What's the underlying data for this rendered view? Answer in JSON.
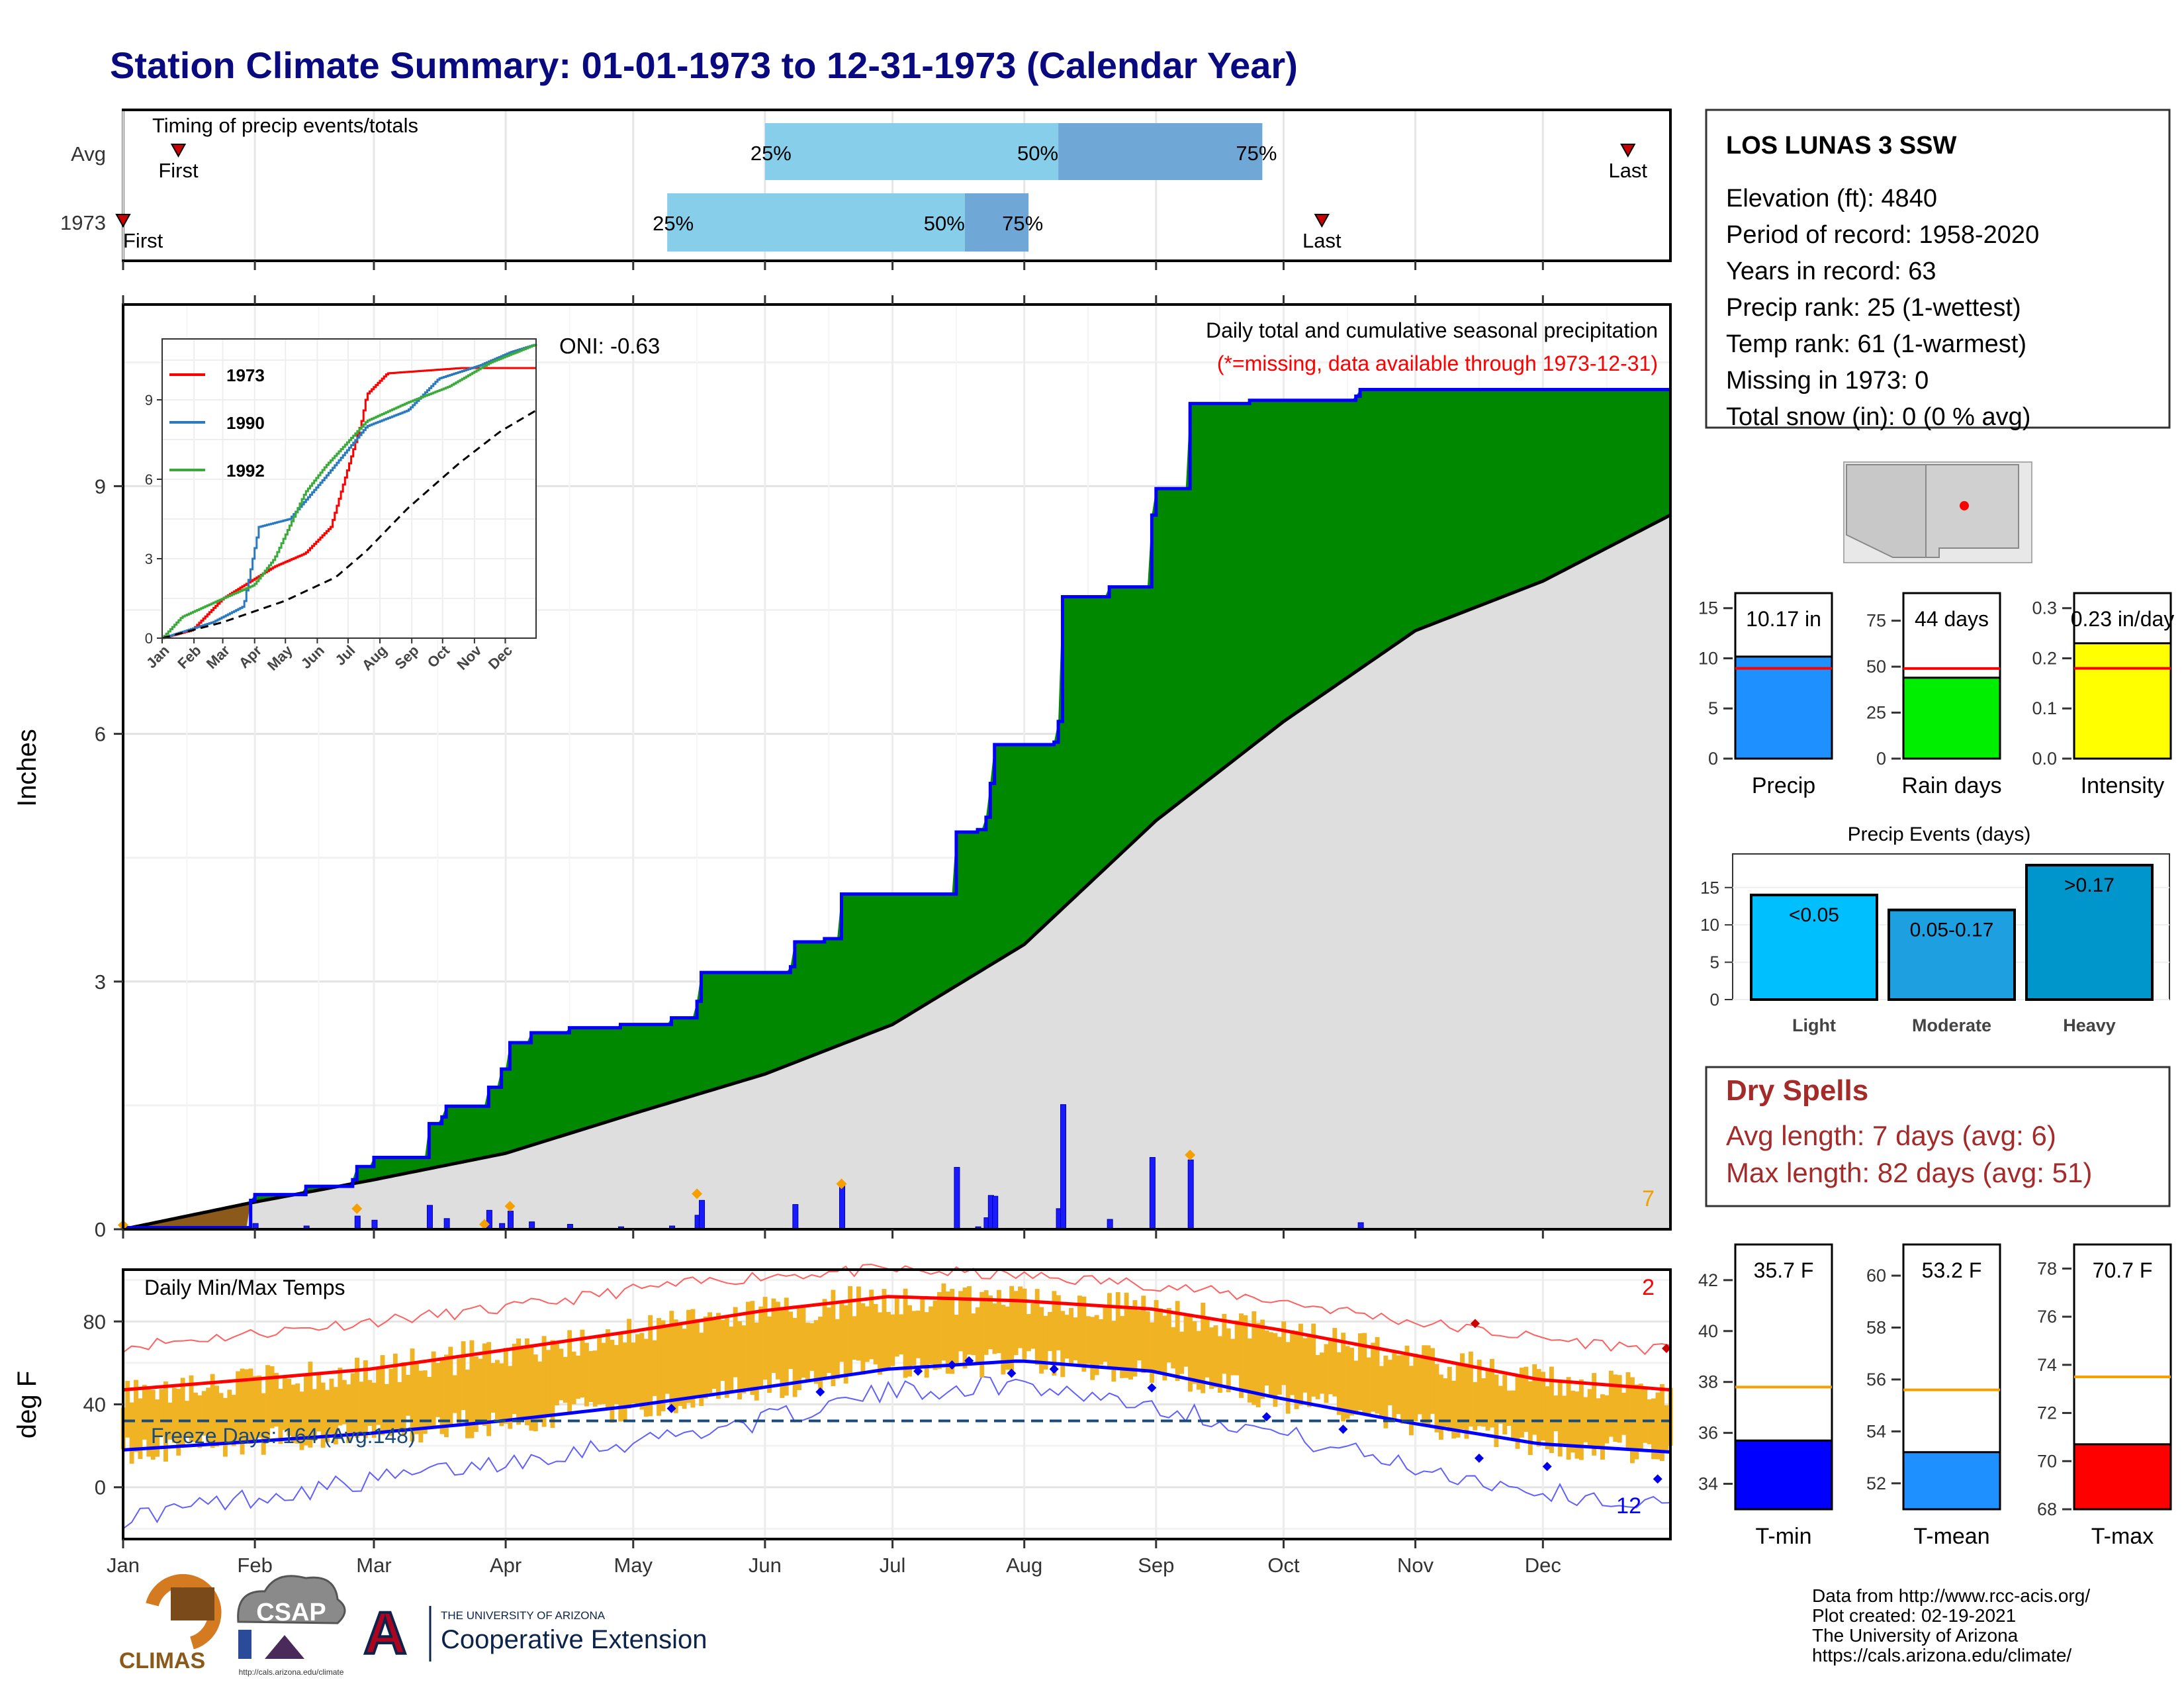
{
  "title": "Station Climate Summary: 01-01-1973 to 12-31-1973 (Calendar Year)",
  "timing": {
    "label": "Timing of precip events/totals",
    "rows": [
      "Avg",
      "1973"
    ],
    "avg": {
      "first": "01-14",
      "p25": "06-01",
      "p50": "08-09",
      "p75": "09-26",
      "last": "12-21",
      "first_label": "First",
      "last_label": "Last"
    },
    "year": {
      "first": "01-01",
      "p25": "05-09",
      "p50": "07-18",
      "p75": "08-02",
      "last": "10-10",
      "first_label": "First",
      "last_label": "Last"
    },
    "pct_labels": [
      "25%",
      "50%",
      "75%"
    ]
  },
  "precip_panel": {
    "ylabel": "Inches",
    "oni": "ONI: -0.63",
    "header": "Daily total and cumulative seasonal precipitation",
    "missing_note": "(*=missing, data available through 1973-12-31)",
    "corner_count": "7",
    "yticks": [
      "0",
      "3",
      "6",
      "9"
    ]
  },
  "inset": {
    "legend": [
      "1973",
      "1990",
      "1992"
    ],
    "yticks": [
      "0",
      "3",
      "6",
      "9"
    ],
    "months": [
      "Jan",
      "Feb",
      "Mar",
      "Apr",
      "May",
      "Jun",
      "Jul",
      "Aug",
      "Sep",
      "Oct",
      "Nov",
      "Dec"
    ]
  },
  "temp_panel": {
    "ylabel": "deg F",
    "title": "Daily Min/Max Temps",
    "freeze": "Freeze Days: 164 (Avg:148)",
    "count_red": "2",
    "count_blue": "12",
    "yticks": [
      "0",
      "40",
      "80"
    ]
  },
  "months": [
    "Jan",
    "Feb",
    "Mar",
    "Apr",
    "May",
    "Jun",
    "Jul",
    "Aug",
    "Sep",
    "Oct",
    "Nov",
    "Dec"
  ],
  "station": {
    "name": "LOS LUNAS 3 SSW",
    "lines": [
      "Elevation (ft): 4840",
      "Period of record: 1958-2020",
      "Years in record: 63",
      "Precip rank: 25 (1-wettest)",
      "Temp rank: 61 (1-warmest)",
      "Missing in 1973: 0",
      "Total snow (in): 0 (0 % avg)"
    ]
  },
  "summary_bars": [
    {
      "label": "Precip",
      "value_text": "10.17 in",
      "yticks": [
        "0",
        "5",
        "10",
        "15"
      ]
    },
    {
      "label": "Rain days",
      "value_text": "44 days",
      "yticks": [
        "0",
        "25",
        "50",
        "75"
      ]
    },
    {
      "label": "Intensity",
      "value_text": "0.23 in/day",
      "yticks": [
        "0.0",
        "0.1",
        "0.2",
        "0.3"
      ]
    }
  ],
  "events": {
    "title": "Precip Events (days)",
    "yticks": [
      "0",
      "5",
      "10",
      "15"
    ],
    "bars": [
      {
        "label": "Light",
        "text": "<0.05"
      },
      {
        "label": "Moderate",
        "text": "0.05-0.17"
      },
      {
        "label": "Heavy",
        "text": ">0.17"
      }
    ]
  },
  "dry_spells": {
    "title": "Dry Spells",
    "avg": "Avg length: 7 days (avg: 6)",
    "max": "Max length: 82 days (avg: 51)"
  },
  "temp_bars": [
    {
      "label": "T-min",
      "value_text": "35.7 F",
      "yticks": [
        "34",
        "36",
        "38",
        "40",
        "42"
      ]
    },
    {
      "label": "T-mean",
      "value_text": "53.2 F",
      "yticks": [
        "52",
        "54",
        "56",
        "58",
        "60"
      ]
    },
    {
      "label": "T-max",
      "value_text": "70.7 F",
      "yticks": [
        "68",
        "70",
        "72",
        "74",
        "76",
        "78"
      ]
    }
  ],
  "credits": [
    "Data from http://www.rcc-acis.org/",
    "Plot created: 02-19-2021",
    "The University of Arizona",
    "https://cals.arizona.edu/climate/"
  ],
  "logos": {
    "climas": "CLIMAS",
    "csap": "CSAP",
    "csap_url": "http://cals.arizona.edu/climate",
    "ua_line1": "THE UNIVERSITY OF ARIZONA",
    "ua_line2": "Cooperative Extension"
  },
  "colors": {
    "title": "#0a0a80",
    "green": "#008800",
    "brown": "#8b5a1a",
    "blue": "#0000ff",
    "gold": "#f0b323",
    "red": "#ff0000",
    "light_blue": "#87ceeb",
    "steel": "#6fa8d6",
    "gray": "#dedede",
    "dry_red": "#a52a2a"
  },
  "chart_data": [
    {
      "type": "line",
      "name": "cumulative precipitation",
      "x_unit": "day of year",
      "y_unit": "inches",
      "ylim": [
        0,
        11.2
      ],
      "cum_1973": [
        [
          1,
          0.02
        ],
        [
          31,
          0.35
        ],
        [
          32,
          0.42
        ],
        [
          44,
          0.52
        ],
        [
          55,
          0.6
        ],
        [
          56,
          0.76
        ],
        [
          59,
          0.76
        ],
        [
          60,
          0.87
        ],
        [
          72,
          0.87
        ],
        [
          73,
          1.28
        ],
        [
          76,
          1.36
        ],
        [
          77,
          1.49
        ],
        [
          86,
          1.49
        ],
        [
          87,
          1.72
        ],
        [
          90,
          1.94
        ],
        [
          92,
          2.26
        ],
        [
          97,
          2.38
        ],
        [
          105,
          2.38
        ],
        [
          106,
          2.44
        ],
        [
          112,
          2.44
        ],
        [
          118,
          2.48
        ],
        [
          130,
          2.56
        ],
        [
          136,
          2.76
        ],
        [
          137,
          3.11
        ],
        [
          150,
          3.11
        ],
        [
          158,
          3.18
        ],
        [
          159,
          3.48
        ],
        [
          166,
          3.52
        ],
        [
          170,
          4.06
        ],
        [
          196,
          4.06
        ],
        [
          197,
          4.81
        ],
        [
          202,
          4.84
        ],
        [
          204,
          4.99
        ],
        [
          205,
          5.4
        ],
        [
          206,
          5.87
        ],
        [
          220,
          5.9
        ],
        [
          221,
          6.15
        ],
        [
          222,
          7.66
        ],
        [
          232,
          7.66
        ],
        [
          233,
          7.78
        ],
        [
          242,
          7.78
        ],
        [
          243,
          8.65
        ],
        [
          244,
          8.97
        ],
        [
          251,
          8.97
        ],
        [
          252,
          10.0
        ],
        [
          266,
          10.04
        ],
        [
          291,
          10.09
        ],
        [
          292,
          10.17
        ],
        [
          365,
          10.17
        ]
      ],
      "avg_cum": [
        [
          1,
          0
        ],
        [
          31,
          0.32
        ],
        [
          60,
          0.6
        ],
        [
          91,
          0.92
        ],
        [
          121,
          1.4
        ],
        [
          152,
          1.88
        ],
        [
          182,
          2.48
        ],
        [
          213,
          3.45
        ],
        [
          244,
          4.95
        ],
        [
          274,
          6.15
        ],
        [
          305,
          7.25
        ],
        [
          335,
          7.85
        ],
        [
          365,
          8.65
        ]
      ],
      "daily": [
        [
          1,
          0.02
        ],
        [
          32,
          0.07
        ],
        [
          44,
          0.04
        ],
        [
          56,
          0.16
        ],
        [
          60,
          0.11
        ],
        [
          73,
          0.29
        ],
        [
          77,
          0.13
        ],
        [
          87,
          0.23
        ],
        [
          90,
          0.07
        ],
        [
          92,
          0.22
        ],
        [
          97,
          0.09
        ],
        [
          106,
          0.06
        ],
        [
          118,
          0.03
        ],
        [
          130,
          0.04
        ],
        [
          136,
          0.17
        ],
        [
          137,
          0.35
        ],
        [
          159,
          0.3
        ],
        [
          170,
          0.54
        ],
        [
          197,
          0.75
        ],
        [
          202,
          0.03
        ],
        [
          204,
          0.14
        ],
        [
          205,
          0.41
        ],
        [
          206,
          0.4
        ],
        [
          221,
          0.25
        ],
        [
          222,
          1.51
        ],
        [
          233,
          0.12
        ],
        [
          243,
          0.87
        ],
        [
          252,
          0.84
        ],
        [
          292,
          0.08
        ]
      ],
      "missing_markers": [
        [
          1,
          0.05
        ],
        [
          56,
          0.25
        ],
        [
          86,
          0.06
        ],
        [
          92,
          0.28
        ],
        [
          136,
          0.43
        ],
        [
          170,
          0.55
        ],
        [
          252,
          0.9
        ]
      ]
    },
    {
      "type": "line",
      "name": "inset cumulative",
      "series": [
        {
          "name": "1973",
          "points": [
            [
              1,
              0
            ],
            [
              30,
              0.3
            ],
            [
              60,
              1.5
            ],
            [
              85,
              2.1
            ],
            [
              110,
              2.7
            ],
            [
              140,
              3.2
            ],
            [
              165,
              4.2
            ],
            [
              195,
              8.2
            ],
            [
              200,
              9.2
            ],
            [
              220,
              10.0
            ],
            [
              292,
              10.2
            ],
            [
              365,
              10.2
            ]
          ]
        },
        {
          "name": "1990",
          "points": [
            [
              1,
              0
            ],
            [
              50,
              0.6
            ],
            [
              80,
              1.2
            ],
            [
              95,
              4.2
            ],
            [
              125,
              4.5
            ],
            [
              160,
              6.1
            ],
            [
              200,
              8.0
            ],
            [
              240,
              8.6
            ],
            [
              270,
              9.8
            ],
            [
              310,
              10.3
            ],
            [
              340,
              10.8
            ],
            [
              365,
              11.1
            ]
          ]
        },
        {
          "name": "1992",
          "points": [
            [
              1,
              0
            ],
            [
              20,
              0.8
            ],
            [
              60,
              1.5
            ],
            [
              90,
              2.0
            ],
            [
              110,
              3.0
            ],
            [
              140,
              5.5
            ],
            [
              160,
              6.5
            ],
            [
              200,
              8.2
            ],
            [
              240,
              8.9
            ],
            [
              280,
              9.5
            ],
            [
              320,
              10.4
            ],
            [
              365,
              11.1
            ]
          ]
        }
      ],
      "avg": [
        [
          1,
          0
        ],
        [
          60,
          0.6
        ],
        [
          120,
          1.4
        ],
        [
          170,
          2.3
        ],
        [
          200,
          3.3
        ],
        [
          240,
          4.9
        ],
        [
          290,
          6.6
        ],
        [
          330,
          7.8
        ],
        [
          365,
          8.6
        ]
      ]
    },
    {
      "type": "line",
      "name": "daily temperatures",
      "y_unit": "deg F",
      "ylim": [
        -25,
        105
      ],
      "tmax_normal": [
        [
          1,
          47
        ],
        [
          31,
          52
        ],
        [
          59,
          57
        ],
        [
          90,
          66
        ],
        [
          120,
          75
        ],
        [
          151,
          85
        ],
        [
          181,
          92
        ],
        [
          212,
          90
        ],
        [
          243,
          86
        ],
        [
          273,
          76
        ],
        [
          304,
          64
        ],
        [
          334,
          52
        ],
        [
          365,
          47
        ]
      ],
      "tmin_normal": [
        [
          1,
          18
        ],
        [
          31,
          22
        ],
        [
          59,
          26
        ],
        [
          90,
          32
        ],
        [
          120,
          39
        ],
        [
          151,
          48
        ],
        [
          181,
          57
        ],
        [
          212,
          61
        ],
        [
          243,
          56
        ],
        [
          273,
          43
        ],
        [
          304,
          31
        ],
        [
          334,
          21
        ],
        [
          365,
          17
        ]
      ],
      "record_high": [
        [
          1,
          68
        ],
        [
          31,
          74
        ],
        [
          59,
          80
        ],
        [
          90,
          86
        ],
        [
          120,
          95
        ],
        [
          151,
          102
        ],
        [
          181,
          105
        ],
        [
          212,
          102
        ],
        [
          243,
          98
        ],
        [
          273,
          90
        ],
        [
          304,
          80
        ],
        [
          334,
          72
        ],
        [
          365,
          66
        ]
      ],
      "record_low": [
        [
          1,
          -15
        ],
        [
          31,
          -5
        ],
        [
          59,
          3
        ],
        [
          90,
          12
        ],
        [
          120,
          22
        ],
        [
          151,
          32
        ],
        [
          181,
          46
        ],
        [
          212,
          50
        ],
        [
          243,
          40
        ],
        [
          273,
          26
        ],
        [
          304,
          10
        ],
        [
          334,
          -2
        ],
        [
          365,
          -10
        ]
      ],
      "freeze_line": 32
    },
    {
      "type": "bar",
      "categories": [
        "Precip"
      ],
      "values": [
        10.17
      ],
      "normal": 9.0,
      "ylim": [
        0,
        15
      ]
    },
    {
      "type": "bar",
      "categories": [
        "Rain days"
      ],
      "values": [
        44
      ],
      "normal": 49,
      "ylim": [
        0,
        75
      ]
    },
    {
      "type": "bar",
      "categories": [
        "Intensity"
      ],
      "values": [
        0.23
      ],
      "normal": 0.18,
      "ylim": [
        0,
        0.3
      ]
    },
    {
      "type": "bar",
      "categories": [
        "Light",
        "Moderate",
        "Heavy"
      ],
      "values": [
        14,
        12,
        18
      ],
      "ylim": [
        0,
        18
      ]
    },
    {
      "type": "bar",
      "categories": [
        "T-min"
      ],
      "values": [
        35.7
      ],
      "normal": 37.8,
      "ylim": [
        33,
        43
      ]
    },
    {
      "type": "bar",
      "categories": [
        "T-mean"
      ],
      "values": [
        53.2
      ],
      "normal": 55.6,
      "ylim": [
        51,
        61
      ]
    },
    {
      "type": "bar",
      "categories": [
        "T-max"
      ],
      "values": [
        70.7
      ],
      "normal": 73.5,
      "ylim": [
        68,
        78
      ]
    }
  ]
}
